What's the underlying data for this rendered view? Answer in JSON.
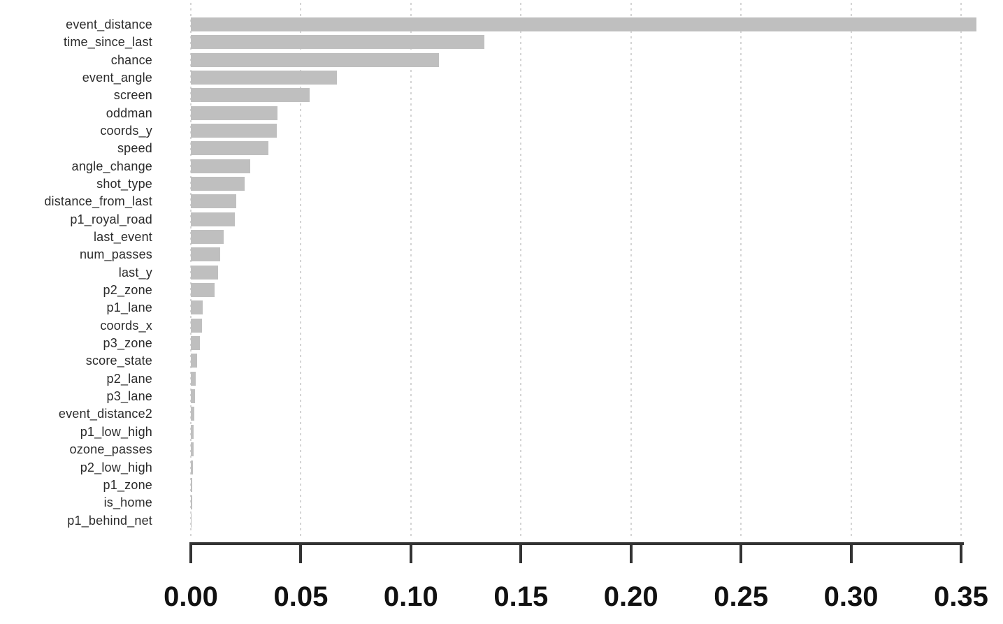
{
  "chart_data": {
    "type": "bar",
    "orientation": "horizontal",
    "title": "",
    "xlabel": "",
    "ylabel": "",
    "xlim": [
      0.0,
      0.35
    ],
    "x_ticks": [
      "0.00",
      "0.05",
      "0.10",
      "0.15",
      "0.20",
      "0.25",
      "0.30",
      "0.35"
    ],
    "x_tick_values": [
      0.0,
      0.05,
      0.1,
      0.15,
      0.2,
      0.25,
      0.3,
      0.35
    ],
    "grid": "vertical-dotted",
    "legend": "none",
    "bar_color": "#bfbfbf",
    "grid_color": "#d4d4d4",
    "axis_color": "#333333",
    "categories": [
      "event_distance",
      "time_since_last",
      "chance",
      "event_angle",
      "screen",
      "oddman",
      "coords_y",
      "speed",
      "angle_change",
      "shot_type",
      "distance_from_last",
      "p1_royal_road",
      "last_event",
      "num_passes",
      "last_y",
      "p2_zone",
      "p1_lane",
      "coords_x",
      "p3_zone",
      "score_state",
      "p2_lane",
      "p3_lane",
      "event_distance2",
      "p1_low_high",
      "ozone_passes",
      "p2_low_high",
      "p1_zone",
      "is_home",
      "p1_behind_net"
    ],
    "values": [
      0.357,
      0.1335,
      0.1128,
      0.0664,
      0.054,
      0.0394,
      0.0392,
      0.0353,
      0.027,
      0.0245,
      0.0205,
      0.0199,
      0.0149,
      0.0134,
      0.0124,
      0.0108,
      0.0055,
      0.0052,
      0.0042,
      0.003,
      0.0022,
      0.0018,
      0.0016,
      0.0014,
      0.0013,
      0.0008,
      0.0006,
      0.0005,
      0.0004
    ]
  }
}
